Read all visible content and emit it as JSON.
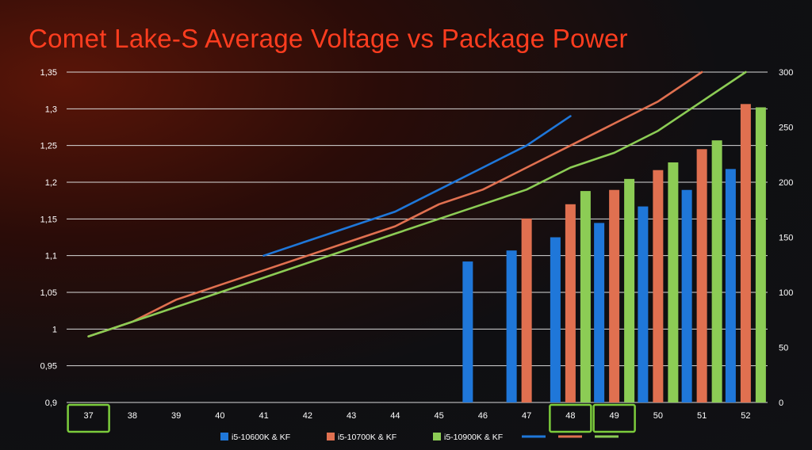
{
  "colors": {
    "background": "#121215",
    "title": "#ff3d1f",
    "grid": "#d9d9d9",
    "axis_text": "#ffffff",
    "highlight": "#7ccc3c",
    "series": [
      "#1f77d9",
      "#e07050",
      "#8ccc55"
    ]
  },
  "chart_data": {
    "type": "bar",
    "title": "Comet Lake-S Average Voltage vs Package Power",
    "categories": [
      "37",
      "38",
      "39",
      "40",
      "41",
      "42",
      "43",
      "44",
      "45",
      "46",
      "47",
      "48",
      "49",
      "50",
      "51",
      "52"
    ],
    "y_left": {
      "range": [
        0.9,
        1.35
      ],
      "ticks": [
        "0,9",
        "0,95",
        "1",
        "1,05",
        "1,1",
        "1,15",
        "1,2",
        "1,25",
        "1,3",
        "1,35"
      ]
    },
    "y_right": {
      "range": [
        0,
        300
      ],
      "ticks": [
        "0",
        "50",
        "100",
        "150",
        "200",
        "250",
        "300"
      ]
    },
    "bar_series": [
      {
        "name": "i5-10600K & KF",
        "color": "#1f77d9",
        "values": [
          null,
          null,
          null,
          null,
          null,
          null,
          null,
          null,
          null,
          128,
          138,
          150,
          163,
          178,
          193,
          212
        ]
      },
      {
        "name": "i5-10700K & KF",
        "color": "#e07050",
        "values": [
          null,
          null,
          null,
          null,
          null,
          null,
          null,
          null,
          null,
          null,
          167,
          180,
          193,
          211,
          230,
          271
        ]
      },
      {
        "name": "i5-10900K & KF",
        "color": "#8ccc55",
        "values": [
          null,
          null,
          null,
          null,
          null,
          null,
          null,
          null,
          null,
          null,
          null,
          192,
          203,
          218,
          238,
          268
        ]
      }
    ],
    "line_series": [
      {
        "color": "#1f77d9",
        "values": [
          null,
          null,
          null,
          null,
          1.1,
          1.12,
          1.14,
          1.16,
          1.19,
          1.22,
          1.25,
          1.29,
          null,
          null,
          null,
          null
        ]
      },
      {
        "color": "#e07050",
        "values": [
          0.99,
          1.01,
          1.04,
          1.06,
          1.08,
          1.1,
          1.12,
          1.14,
          1.17,
          1.19,
          1.22,
          1.25,
          1.28,
          1.31,
          1.35,
          null
        ]
      },
      {
        "color": "#8ccc55",
        "values": [
          0.99,
          1.01,
          1.03,
          1.05,
          1.07,
          1.09,
          1.11,
          1.13,
          1.15,
          1.17,
          1.19,
          1.22,
          1.24,
          1.27,
          1.31,
          1.35
        ]
      }
    ],
    "highlighted_categories": [
      "37",
      "48",
      "49"
    ],
    "legend_position": "bottom",
    "grid": true
  }
}
